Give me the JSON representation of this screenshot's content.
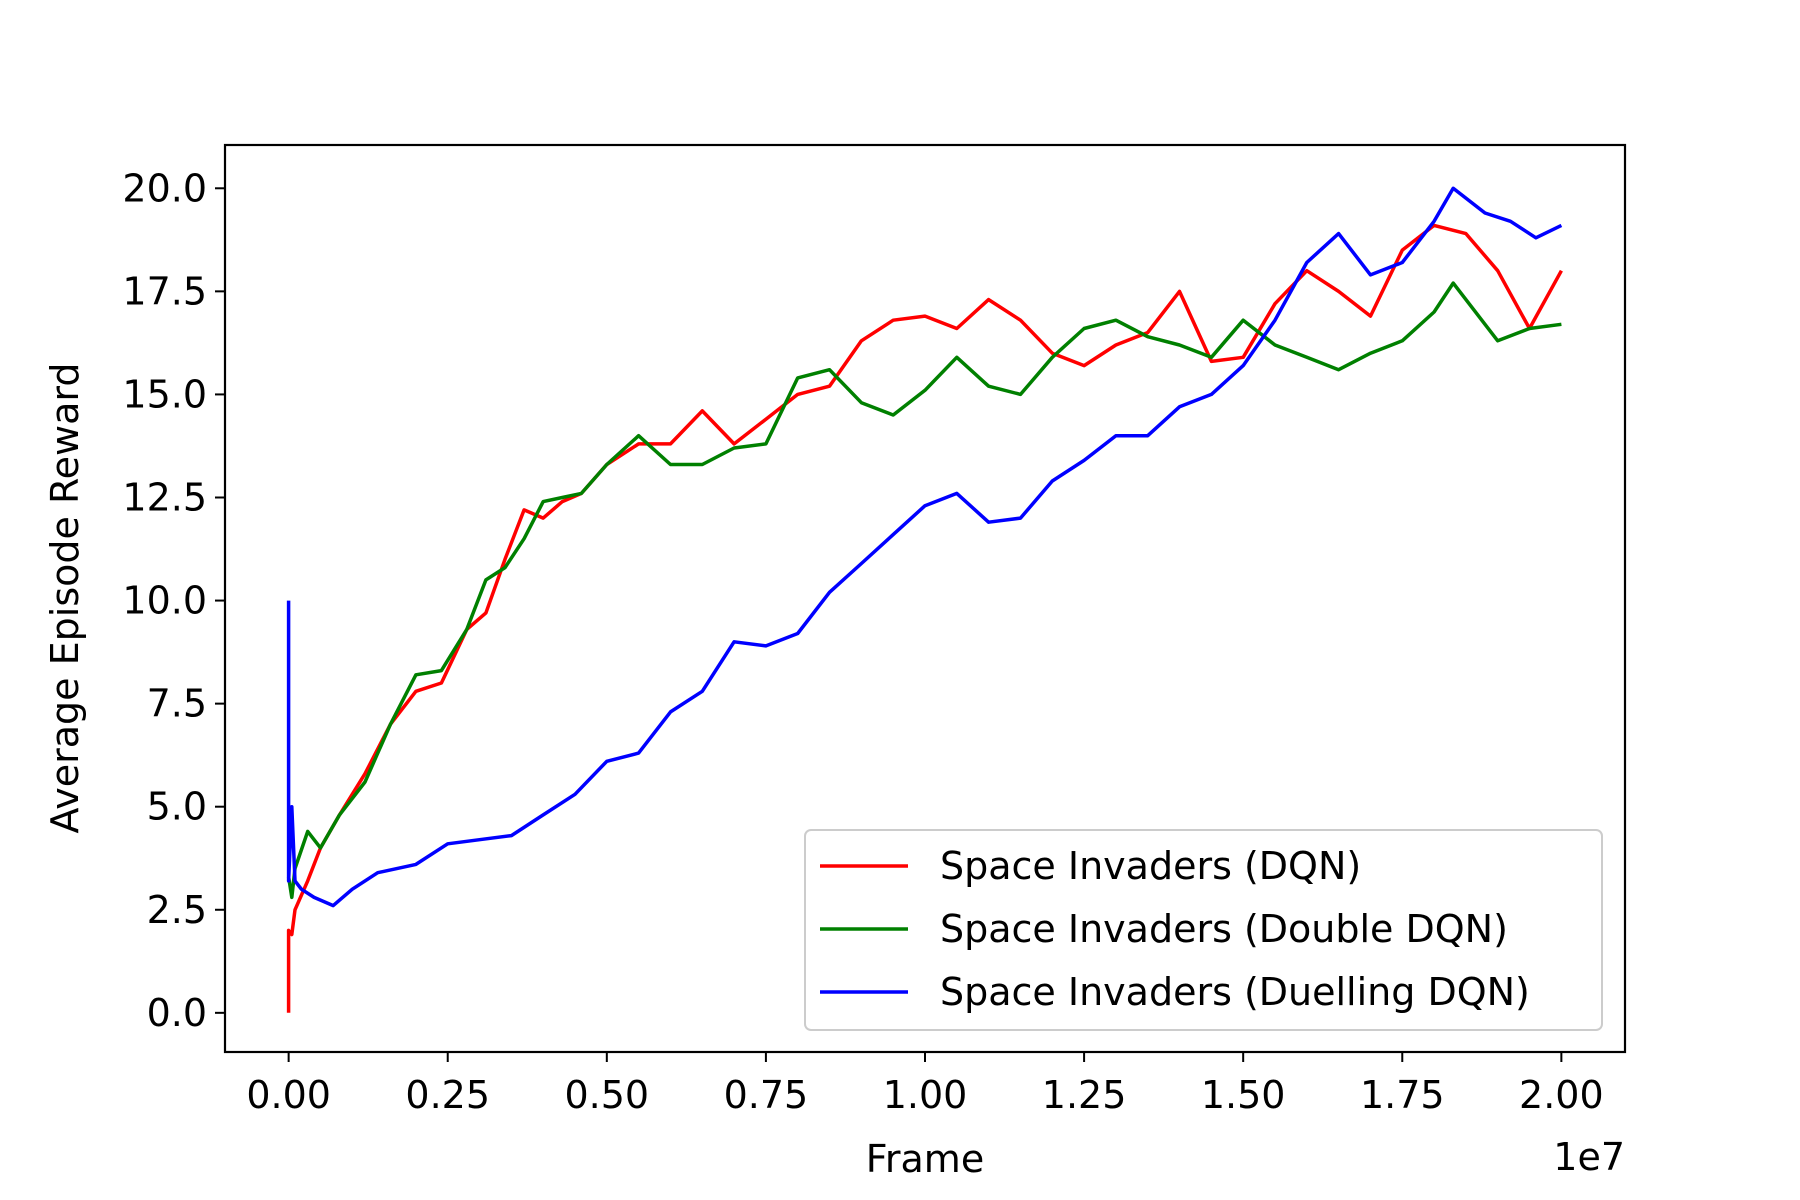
{
  "chart_data": {
    "type": "line",
    "xlabel": "Frame",
    "ylabel": "Average Episode Reward",
    "x_offset_label": "1e7",
    "xlim": [
      -0.1,
      2.1
    ],
    "ylim": [
      -0.95,
      21.05
    ],
    "x_ticks": [
      0.0,
      0.25,
      0.5,
      0.75,
      1.0,
      1.25,
      1.5,
      1.75,
      2.0
    ],
    "x_tick_labels": [
      "0.00",
      "0.25",
      "0.50",
      "0.75",
      "1.00",
      "1.25",
      "1.50",
      "1.75",
      "2.00"
    ],
    "y_ticks": [
      0.0,
      2.5,
      5.0,
      7.5,
      10.0,
      12.5,
      15.0,
      17.5,
      20.0
    ],
    "y_tick_labels": [
      "0.0",
      "2.5",
      "5.0",
      "7.5",
      "10.0",
      "12.5",
      "15.0",
      "17.5",
      "20.0"
    ],
    "grid": false,
    "legend_position": "lower-right",
    "series": [
      {
        "name": "Space Invaders (DQN)",
        "color": "#ff0000",
        "x": [
          0.0,
          0.0,
          0.005,
          0.01,
          0.03,
          0.05,
          0.08,
          0.12,
          0.16,
          0.2,
          0.24,
          0.28,
          0.31,
          0.34,
          0.37,
          0.4,
          0.43,
          0.46,
          0.5,
          0.55,
          0.6,
          0.65,
          0.7,
          0.75,
          0.8,
          0.85,
          0.9,
          0.95,
          1.0,
          1.05,
          1.1,
          1.15,
          1.2,
          1.25,
          1.3,
          1.35,
          1.4,
          1.45,
          1.5,
          1.55,
          1.6,
          1.65,
          1.7,
          1.75,
          1.8,
          1.85,
          1.9,
          1.95,
          2.0
        ],
        "y": [
          0.0,
          2.0,
          1.9,
          2.5,
          3.2,
          4.0,
          4.8,
          5.8,
          7.0,
          7.8,
          8.0,
          9.3,
          9.7,
          11.0,
          12.2,
          12.0,
          12.4,
          12.6,
          13.3,
          13.8,
          13.8,
          14.6,
          13.8,
          14.4,
          15.0,
          15.2,
          16.3,
          16.8,
          16.9,
          16.6,
          17.3,
          16.8,
          16.0,
          15.7,
          16.2,
          16.5,
          17.5,
          15.8,
          15.9,
          17.2,
          18.0,
          17.5,
          16.9,
          18.5,
          19.1,
          18.9,
          18.0,
          16.6,
          18.0
        ]
      },
      {
        "name": "Space Invaders (Double DQN)",
        "color": "#008000",
        "x": [
          0.0,
          0.005,
          0.01,
          0.03,
          0.05,
          0.08,
          0.12,
          0.16,
          0.2,
          0.24,
          0.28,
          0.31,
          0.34,
          0.37,
          0.4,
          0.43,
          0.46,
          0.5,
          0.55,
          0.6,
          0.65,
          0.7,
          0.75,
          0.8,
          0.85,
          0.9,
          0.95,
          1.0,
          1.05,
          1.1,
          1.15,
          1.2,
          1.25,
          1.3,
          1.35,
          1.4,
          1.45,
          1.5,
          1.55,
          1.6,
          1.65,
          1.7,
          1.75,
          1.8,
          1.83,
          1.9,
          1.95,
          2.0
        ],
        "y": [
          3.3,
          2.8,
          3.5,
          4.4,
          4.0,
          4.8,
          5.6,
          7.0,
          8.2,
          8.3,
          9.3,
          10.5,
          10.8,
          11.5,
          12.4,
          12.5,
          12.6,
          13.3,
          14.0,
          13.3,
          13.3,
          13.7,
          13.8,
          15.4,
          15.6,
          14.8,
          14.5,
          15.1,
          15.9,
          15.2,
          15.0,
          15.9,
          16.6,
          16.8,
          16.4,
          16.2,
          15.9,
          16.8,
          16.2,
          15.9,
          15.6,
          16.0,
          16.3,
          17.0,
          17.7,
          16.3,
          16.6,
          16.7
        ]
      },
      {
        "name": "Space Invaders (Duelling DQN)",
        "color": "#0000ff",
        "x": [
          0.0,
          0.0,
          0.005,
          0.01,
          0.02,
          0.04,
          0.07,
          0.1,
          0.14,
          0.2,
          0.25,
          0.3,
          0.35,
          0.4,
          0.45,
          0.5,
          0.55,
          0.6,
          0.65,
          0.7,
          0.75,
          0.8,
          0.85,
          0.9,
          0.95,
          1.0,
          1.05,
          1.1,
          1.15,
          1.2,
          1.25,
          1.3,
          1.35,
          1.4,
          1.45,
          1.5,
          1.55,
          1.6,
          1.65,
          1.7,
          1.75,
          1.8,
          1.83,
          1.88,
          1.92,
          1.96,
          2.0
        ],
        "y": [
          10.0,
          3.2,
          5.0,
          3.2,
          3.0,
          2.8,
          2.6,
          3.0,
          3.4,
          3.6,
          4.1,
          4.2,
          4.3,
          4.8,
          5.3,
          6.1,
          6.3,
          7.3,
          7.8,
          9.0,
          8.9,
          9.2,
          10.2,
          10.9,
          11.6,
          12.3,
          12.6,
          11.9,
          12.0,
          12.9,
          13.4,
          14.0,
          14.0,
          14.7,
          15.0,
          15.7,
          16.8,
          18.2,
          18.9,
          17.9,
          18.2,
          19.2,
          20.0,
          19.4,
          19.2,
          18.8,
          19.1
        ]
      }
    ]
  }
}
